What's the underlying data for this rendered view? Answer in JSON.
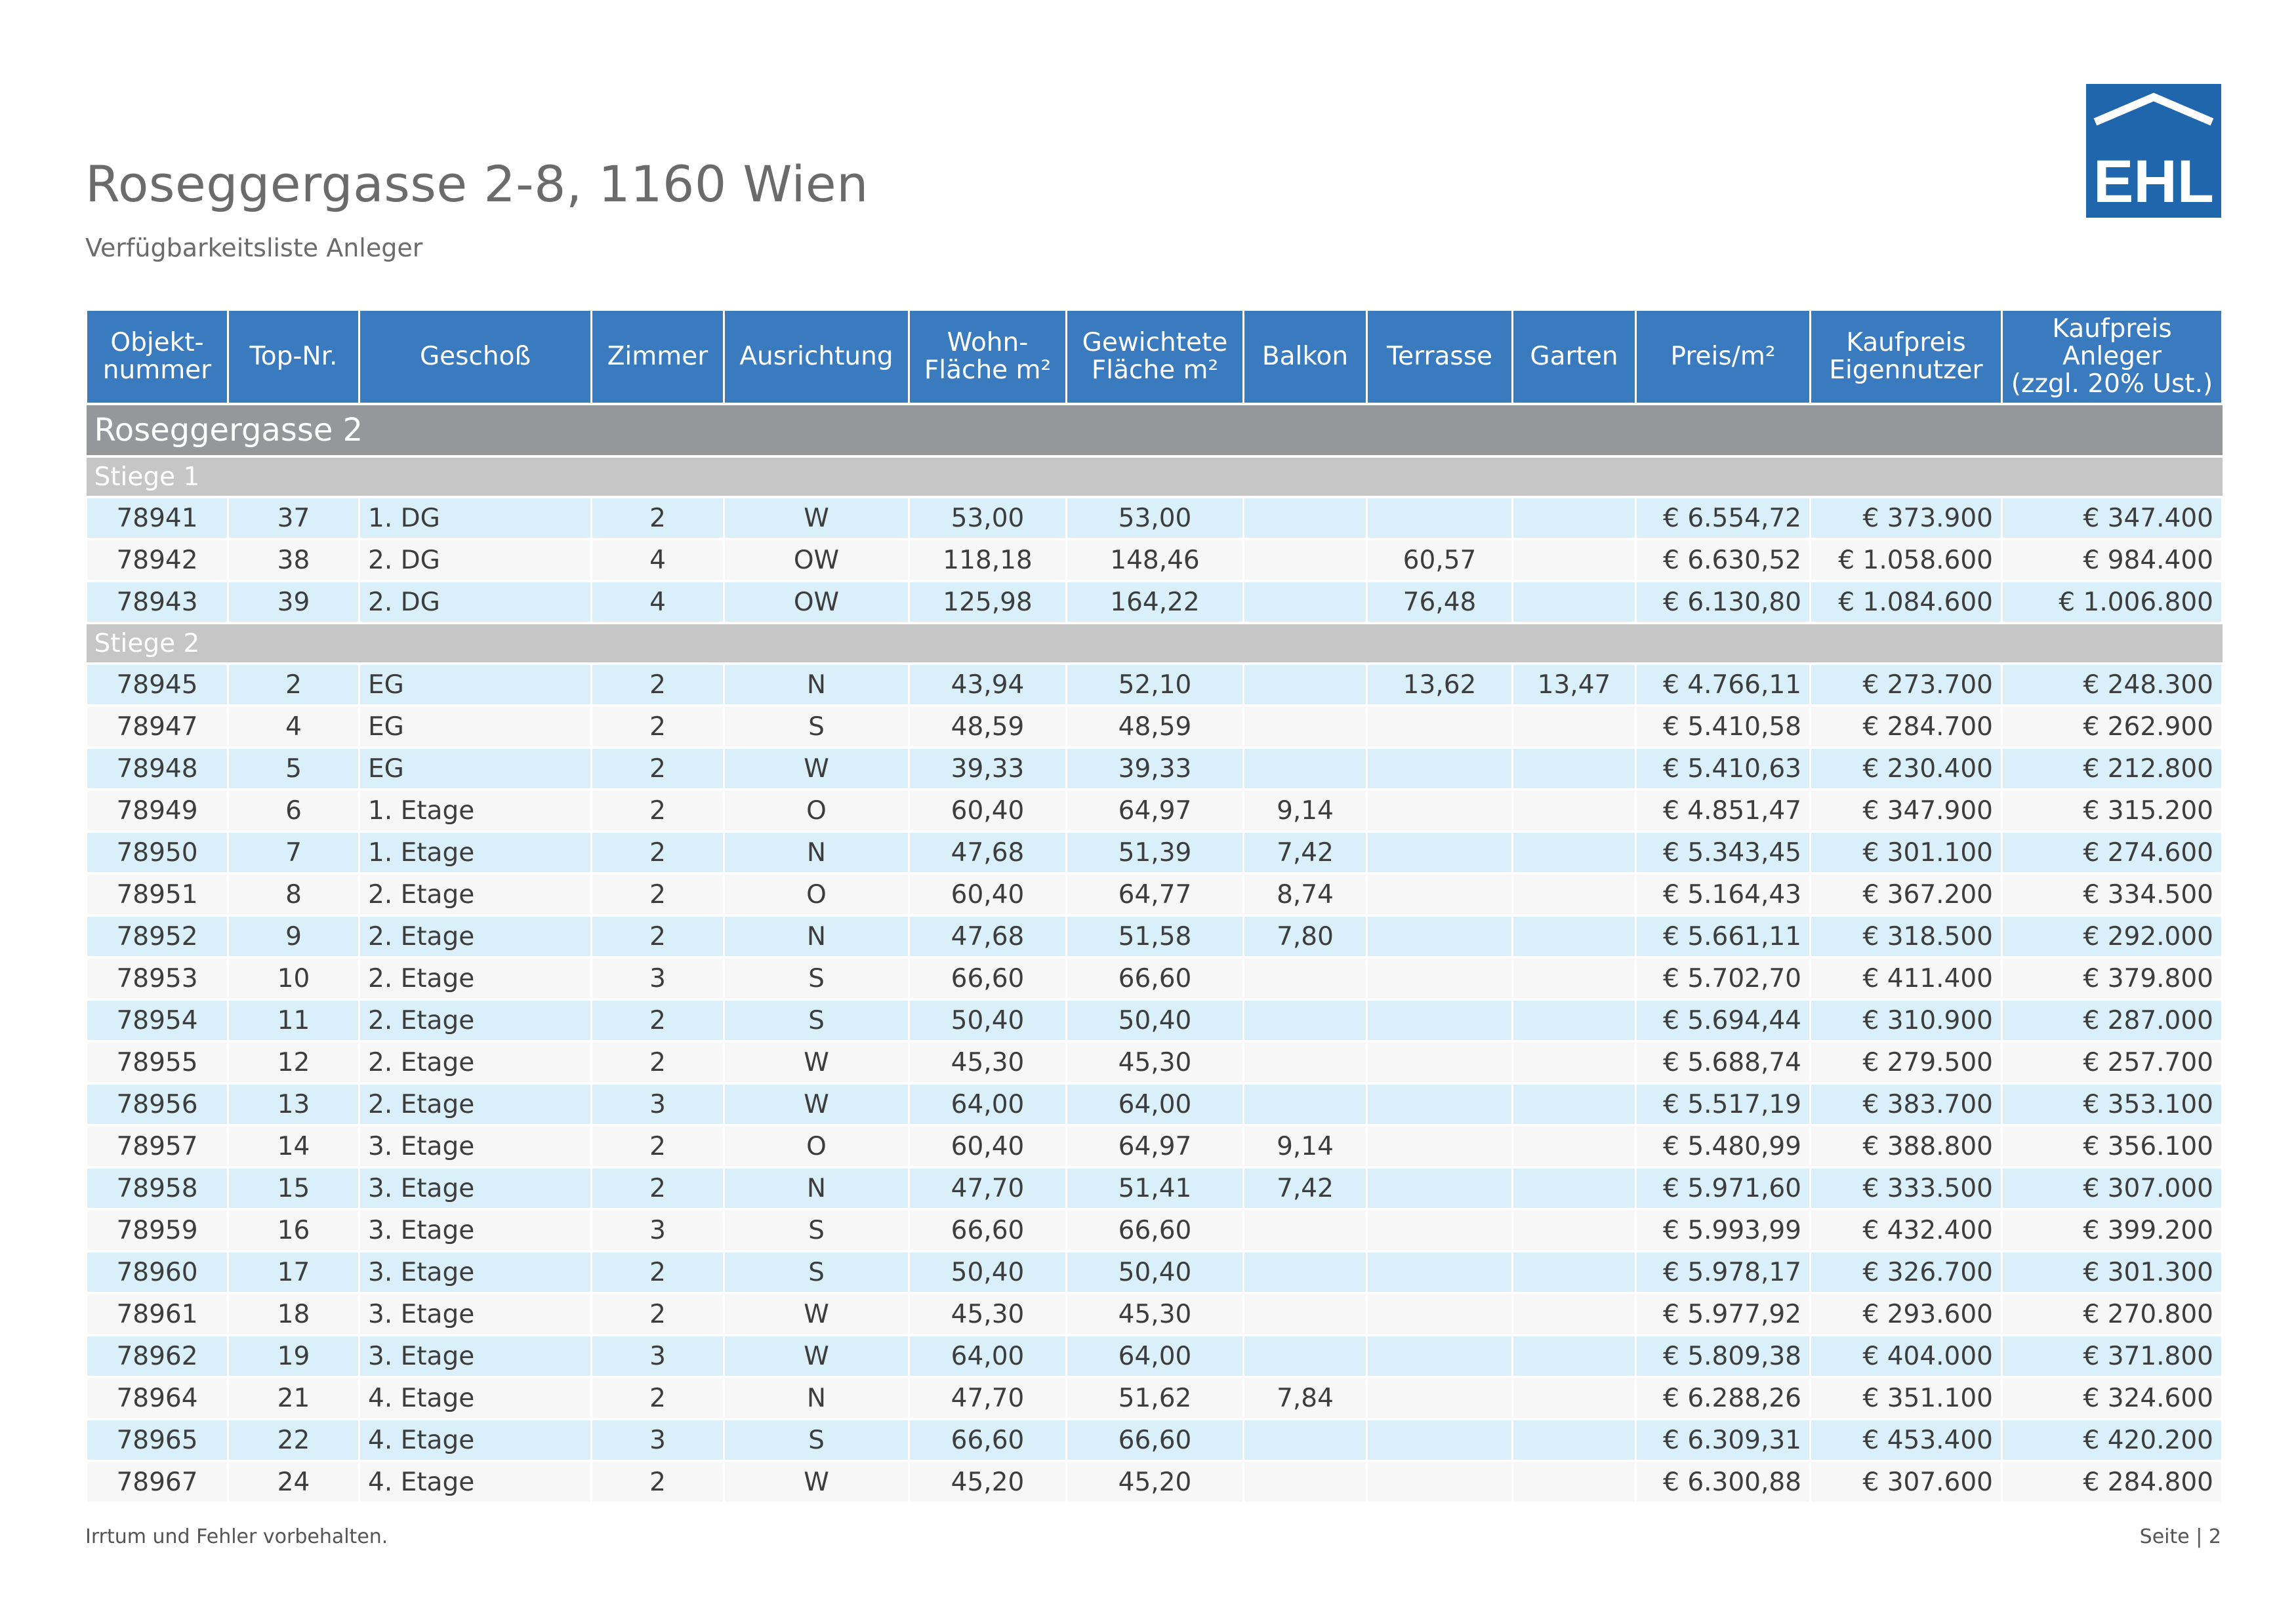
{
  "header": {
    "title": "Roseggergasse 2-8, 1160 Wien",
    "subtitle": "Verfügbarkeitsliste Anleger",
    "logo_text": "EHL",
    "logo_color": "#1f66ad"
  },
  "table": {
    "columns": [
      [
        "Objekt-",
        "nummer"
      ],
      [
        "Top-Nr."
      ],
      [
        "Geschoß"
      ],
      [
        "Zimmer"
      ],
      [
        "Ausrichtung"
      ],
      [
        "Wohn-",
        "Fläche m²"
      ],
      [
        "Gewichtete",
        "Fläche m²"
      ],
      [
        "Balkon"
      ],
      [
        "Terrasse"
      ],
      [
        "Garten"
      ],
      [
        "Preis/m²"
      ],
      [
        "Kaufpreis",
        "Eigennutzer"
      ],
      [
        "Kaufpreis",
        "Anleger",
        "(zzgl. 20% Ust.)"
      ]
    ],
    "section": "Roseggergasse 2",
    "stiegen": [
      {
        "label": "Stiege 1",
        "rows": [
          [
            "78941",
            "37",
            "1. DG",
            "2",
            "W",
            "53,00",
            "53,00",
            "",
            "",
            "",
            "€ 6.554,72",
            "€ 373.900",
            "€ 347.400"
          ],
          [
            "78942",
            "38",
            "2. DG",
            "4",
            "OW",
            "118,18",
            "148,46",
            "",
            "60,57",
            "",
            "€ 6.630,52",
            "€ 1.058.600",
            "€ 984.400"
          ],
          [
            "78943",
            "39",
            "2. DG",
            "4",
            "OW",
            "125,98",
            "164,22",
            "",
            "76,48",
            "",
            "€ 6.130,80",
            "€ 1.084.600",
            "€ 1.006.800"
          ]
        ]
      },
      {
        "label": "Stiege 2",
        "rows": [
          [
            "78945",
            "2",
            "EG",
            "2",
            "N",
            "43,94",
            "52,10",
            "",
            "13,62",
            "13,47",
            "€ 4.766,11",
            "€ 273.700",
            "€ 248.300"
          ],
          [
            "78947",
            "4",
            "EG",
            "2",
            "S",
            "48,59",
            "48,59",
            "",
            "",
            "",
            "€ 5.410,58",
            "€ 284.700",
            "€ 262.900"
          ],
          [
            "78948",
            "5",
            "EG",
            "2",
            "W",
            "39,33",
            "39,33",
            "",
            "",
            "",
            "€ 5.410,63",
            "€ 230.400",
            "€ 212.800"
          ],
          [
            "78949",
            "6",
            "1. Etage",
            "2",
            "O",
            "60,40",
            "64,97",
            "9,14",
            "",
            "",
            "€ 4.851,47",
            "€ 347.900",
            "€ 315.200"
          ],
          [
            "78950",
            "7",
            "1. Etage",
            "2",
            "N",
            "47,68",
            "51,39",
            "7,42",
            "",
            "",
            "€ 5.343,45",
            "€ 301.100",
            "€ 274.600"
          ],
          [
            "78951",
            "8",
            "2. Etage",
            "2",
            "O",
            "60,40",
            "64,77",
            "8,74",
            "",
            "",
            "€ 5.164,43",
            "€ 367.200",
            "€ 334.500"
          ],
          [
            "78952",
            "9",
            "2. Etage",
            "2",
            "N",
            "47,68",
            "51,58",
            "7,80",
            "",
            "",
            "€ 5.661,11",
            "€ 318.500",
            "€ 292.000"
          ],
          [
            "78953",
            "10",
            "2. Etage",
            "3",
            "S",
            "66,60",
            "66,60",
            "",
            "",
            "",
            "€ 5.702,70",
            "€ 411.400",
            "€ 379.800"
          ],
          [
            "78954",
            "11",
            "2. Etage",
            "2",
            "S",
            "50,40",
            "50,40",
            "",
            "",
            "",
            "€ 5.694,44",
            "€ 310.900",
            "€ 287.000"
          ],
          [
            "78955",
            "12",
            "2. Etage",
            "2",
            "W",
            "45,30",
            "45,30",
            "",
            "",
            "",
            "€ 5.688,74",
            "€ 279.500",
            "€ 257.700"
          ],
          [
            "78956",
            "13",
            "2. Etage",
            "3",
            "W",
            "64,00",
            "64,00",
            "",
            "",
            "",
            "€ 5.517,19",
            "€ 383.700",
            "€ 353.100"
          ],
          [
            "78957",
            "14",
            "3. Etage",
            "2",
            "O",
            "60,40",
            "64,97",
            "9,14",
            "",
            "",
            "€ 5.480,99",
            "€ 388.800",
            "€ 356.100"
          ],
          [
            "78958",
            "15",
            "3. Etage",
            "2",
            "N",
            "47,70",
            "51,41",
            "7,42",
            "",
            "",
            "€ 5.971,60",
            "€ 333.500",
            "€ 307.000"
          ],
          [
            "78959",
            "16",
            "3. Etage",
            "3",
            "S",
            "66,60",
            "66,60",
            "",
            "",
            "",
            "€ 5.993,99",
            "€ 432.400",
            "€ 399.200"
          ],
          [
            "78960",
            "17",
            "3. Etage",
            "2",
            "S",
            "50,40",
            "50,40",
            "",
            "",
            "",
            "€ 5.978,17",
            "€ 326.700",
            "€ 301.300"
          ],
          [
            "78961",
            "18",
            "3. Etage",
            "2",
            "W",
            "45,30",
            "45,30",
            "",
            "",
            "",
            "€ 5.977,92",
            "€ 293.600",
            "€ 270.800"
          ],
          [
            "78962",
            "19",
            "3. Etage",
            "3",
            "W",
            "64,00",
            "64,00",
            "",
            "",
            "",
            "€ 5.809,38",
            "€ 404.000",
            "€ 371.800"
          ],
          [
            "78964",
            "21",
            "4. Etage",
            "2",
            "N",
            "47,70",
            "51,62",
            "7,84",
            "",
            "",
            "€ 6.288,26",
            "€ 351.100",
            "€ 324.600"
          ],
          [
            "78965",
            "22",
            "4. Etage",
            "3",
            "S",
            "66,60",
            "66,60",
            "",
            "",
            "",
            "€ 6.309,31",
            "€ 453.400",
            "€ 420.200"
          ],
          [
            "78967",
            "24",
            "4. Etage",
            "2",
            "W",
            "45,20",
            "45,20",
            "",
            "",
            "",
            "€ 6.300,88",
            "€ 307.600",
            "€ 284.800"
          ]
        ]
      }
    ]
  },
  "footer": {
    "disclaimer": "Irrtum und Fehler vorbehalten.",
    "page_label": "Seite | 2"
  }
}
